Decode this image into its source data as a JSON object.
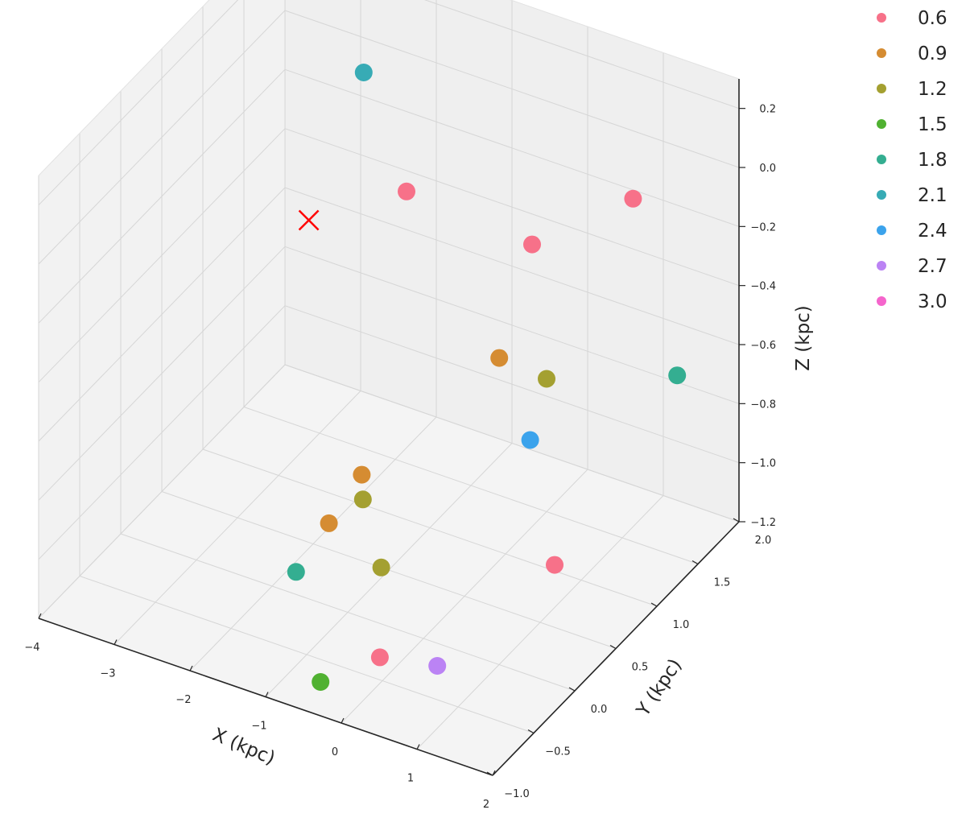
{
  "chart_data": {
    "type": "scatter",
    "projection": "3d",
    "xlabel": "X (kpc)",
    "ylabel": "Y (kpc)",
    "zlabel": "Z (kpc)",
    "xlim": [
      -4,
      2
    ],
    "ylim": [
      -1,
      2
    ],
    "zlim": [
      -1.2,
      0.3
    ],
    "x_ticks": [
      "−4",
      "−3",
      "−2",
      "−1",
      "0",
      "1",
      "2"
    ],
    "y_ticks": [
      "−1.0",
      "−0.5",
      "0.0",
      "0.5",
      "1.0",
      "1.5",
      "2.0"
    ],
    "z_ticks": [
      "−1.2",
      "−1.0",
      "−0.8",
      "−0.6",
      "−0.4",
      "−0.2",
      "0.0",
      "0.2"
    ],
    "grid": true,
    "legend": {
      "position": "top-right, outside",
      "entries": [
        {
          "label": "0.6",
          "color": "#f77189"
        },
        {
          "label": "0.9",
          "color": "#d58c32"
        },
        {
          "label": "1.2",
          "color": "#a4a031"
        },
        {
          "label": "1.5",
          "color": "#50b131"
        },
        {
          "label": "1.8",
          "color": "#34ae91"
        },
        {
          "label": "2.1",
          "color": "#37abb5"
        },
        {
          "label": "2.4",
          "color": "#3ba3ec"
        },
        {
          "label": "2.7",
          "color": "#bb83f4"
        },
        {
          "label": "3.0",
          "color": "#f565cc"
        }
      ]
    },
    "points": [
      {
        "x": 0.6,
        "y": 2.0,
        "z": -0.23,
        "value": "0.6",
        "color": "#f77189"
      },
      {
        "x": -0.3,
        "y": 1.6,
        "z": -0.35,
        "value": "0.6",
        "color": "#f77189"
      },
      {
        "x": -1.2,
        "y": 0.9,
        "z": -0.05,
        "value": "0.6",
        "color": "#f77189"
      },
      {
        "x": -0.25,
        "y": -0.3,
        "z": -1.2,
        "value": "0.6",
        "color": "#f77189"
      },
      {
        "x": 1.3,
        "y": 0.4,
        "z": -0.95,
        "value": "0.6",
        "color": "#f77189"
      },
      {
        "x": -0.3,
        "y": 1.2,
        "z": -0.62,
        "value": "0.9",
        "color": "#d58c32"
      },
      {
        "x": -1.9,
        "y": 1.0,
        "z": -1.1,
        "value": "0.9",
        "color": "#d58c32"
      },
      {
        "x": -1.9,
        "y": 0.6,
        "z": -1.15,
        "value": "0.9",
        "color": "#d58c32"
      },
      {
        "x": 0.0,
        "y": 1.5,
        "z": -0.75,
        "value": "1.2",
        "color": "#a4a031"
      },
      {
        "x": -0.8,
        "y": 0.0,
        "z": -0.8,
        "value": "1.2",
        "color": "#a4a031"
      },
      {
        "x": -1.1,
        "y": 0.5,
        "z": -1.2,
        "value": "1.2",
        "color": "#a4a031"
      },
      {
        "x": -0.6,
        "y": -0.7,
        "z": -1.2,
        "value": "1.5",
        "color": "#50b131"
      },
      {
        "x": -1.9,
        "y": 0.2,
        "z": -1.2,
        "value": "1.8",
        "color": "#34ae91"
      },
      {
        "x": 1.4,
        "y": 1.8,
        "z": -0.7,
        "value": "1.8",
        "color": "#34ae91"
      },
      {
        "x": -2.2,
        "y": 1.3,
        "z": 0.15,
        "value": "2.1",
        "color": "#37abb5"
      },
      {
        "x": 0.0,
        "y": 1.3,
        "z": -0.9,
        "value": "2.4",
        "color": "#3ba3ec"
      },
      {
        "x": 0.4,
        "y": -0.2,
        "z": -1.2,
        "value": "2.7",
        "color": "#bb83f4"
      }
    ],
    "marker": {
      "label": "X",
      "x": -2.6,
      "y": 1.0,
      "z": -0.3,
      "color": "#ff0000"
    }
  }
}
